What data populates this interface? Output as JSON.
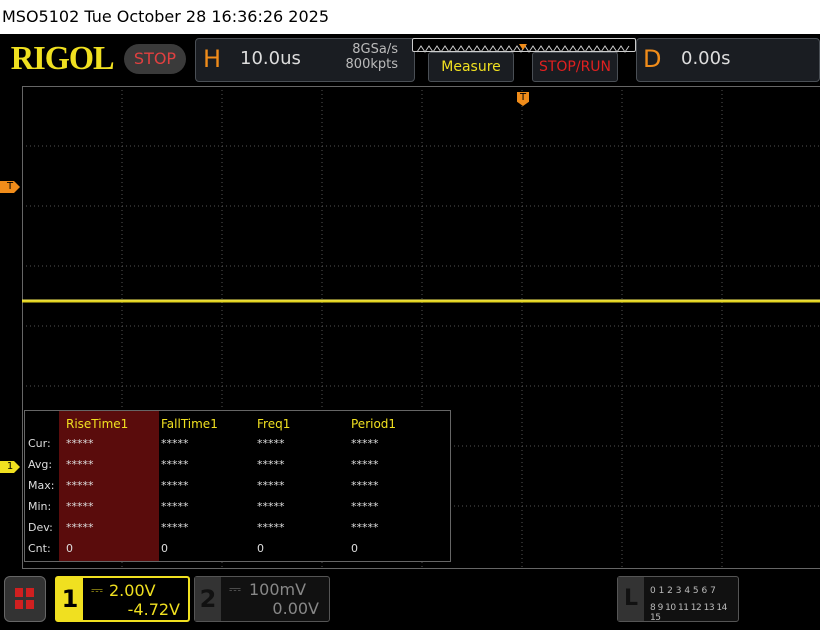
{
  "titlebar": {
    "text": "MSO5102  Tue October 28 16:36:26 2025"
  },
  "header": {
    "logo": "RIGOL",
    "run_state": "STOP",
    "h_label": "H",
    "timebase": "10.0us",
    "sample_rate": "8GSa/s",
    "memory_depth": "800kpts",
    "measure_label": "Measure",
    "stoprun_label": "STOP/RUN",
    "d_label": "D",
    "delay": "0.00s"
  },
  "markers": {
    "trigger_pos": "T",
    "trigger_level": "T",
    "ch1": "1"
  },
  "measurements": {
    "columns": [
      "RiseTime1",
      "FallTime1",
      "Freq1",
      "Period1"
    ],
    "rows": [
      {
        "label": "Cur:",
        "values": [
          "*****",
          "*****",
          "*****",
          "*****"
        ]
      },
      {
        "label": "Avg:",
        "values": [
          "*****",
          "*****",
          "*****",
          "*****"
        ]
      },
      {
        "label": "Max:",
        "values": [
          "*****",
          "*****",
          "*****",
          "*****"
        ]
      },
      {
        "label": "Min:",
        "values": [
          "*****",
          "*****",
          "*****",
          "*****"
        ]
      },
      {
        "label": "Dev:",
        "values": [
          "*****",
          "*****",
          "*****",
          "*****"
        ]
      },
      {
        "label": "Cnt:",
        "values": [
          "0",
          "0",
          "0",
          "0"
        ]
      }
    ]
  },
  "channels": [
    {
      "num": "1",
      "scale": "2.00V",
      "offset": "-4.72V",
      "color": "#f0e020",
      "active": true
    },
    {
      "num": "2",
      "scale": "100mV",
      "offset": "0.00V",
      "color": "#888888",
      "active": false
    }
  ],
  "logic": {
    "label": "L",
    "row1": "0 1 2 3  4 5 6 7",
    "row2": "8 9 10 11 12 13 14 15"
  },
  "colors": {
    "ch1": "#f0e020",
    "trigger": "#f08c1a",
    "stop": "#e04040"
  }
}
